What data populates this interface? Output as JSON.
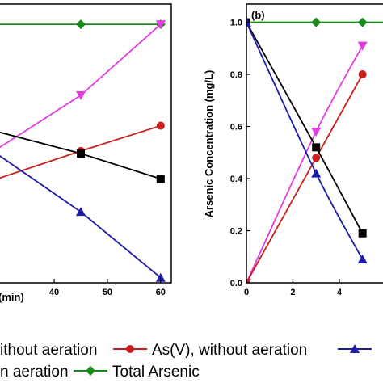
{
  "chart_data": [
    {
      "type": "line",
      "panel": "(a)",
      "title": "",
      "xlabel": "(min)",
      "ylabel": "",
      "xlim": [
        28,
        62
      ],
      "ylim": [
        -0.02,
        1.08
      ],
      "x_ticks": [
        40,
        50,
        60
      ],
      "y_ticks": [],
      "series": [
        {
          "key": "total",
          "color": "#1a8a1a",
          "marker": "diamond",
          "x": [
            25,
            45,
            60
          ],
          "y": [
            1.0,
            1.0,
            1.0
          ]
        },
        {
          "key": "pink",
          "color": "#e23be2",
          "marker": "triangle-down",
          "x": [
            25,
            45,
            60
          ],
          "y": [
            0.45,
            0.72,
            1.0
          ]
        },
        {
          "key": "red",
          "color": "#c81e1e",
          "marker": "circle",
          "x": [
            25,
            45,
            60
          ],
          "y": [
            0.36,
            0.5,
            0.6
          ]
        },
        {
          "key": "black",
          "color": "#000000",
          "marker": "square",
          "x": [
            25,
            45,
            60
          ],
          "y": [
            0.6,
            0.49,
            0.39
          ]
        },
        {
          "key": "blue",
          "color": "#1c1ca8",
          "marker": "triangle-up",
          "x": [
            25,
            45,
            60
          ],
          "y": [
            0.55,
            0.26,
            0.0
          ]
        }
      ]
    },
    {
      "type": "line",
      "panel": "(b)",
      "title": "",
      "xlabel": "",
      "ylabel": "Arsenic Concentration (mg/L)",
      "xlim": [
        0,
        6.3
      ],
      "ylim": [
        0,
        1.07
      ],
      "x_ticks": [
        0,
        2,
        4
      ],
      "y_ticks": [
        0.0,
        0.2,
        0.4,
        0.6,
        0.8,
        1.0
      ],
      "series": [
        {
          "key": "total",
          "color": "#1a8a1a",
          "marker": "diamond",
          "x": [
            0,
            3,
            5,
            7
          ],
          "y": [
            1.0,
            1.0,
            1.0,
            1.0
          ]
        },
        {
          "key": "pink",
          "color": "#e23be2",
          "marker": "triangle-down",
          "x": [
            0,
            3,
            5
          ],
          "y": [
            0.0,
            0.58,
            0.91
          ]
        },
        {
          "key": "red",
          "color": "#c81e1e",
          "marker": "circle",
          "x": [
            0,
            3,
            5
          ],
          "y": [
            0.0,
            0.48,
            0.8
          ]
        },
        {
          "key": "black",
          "color": "#000000",
          "marker": "square",
          "x": [
            0,
            3,
            5
          ],
          "y": [
            1.0,
            0.52,
            0.19
          ]
        },
        {
          "key": "blue",
          "color": "#1c1ca8",
          "marker": "triangle-up",
          "x": [
            0,
            3,
            5
          ],
          "y": [
            1.0,
            0.42,
            0.09
          ]
        }
      ]
    }
  ],
  "legend": {
    "row1": [
      {
        "key": "black",
        "label": "ithout aeration"
      },
      {
        "key": "red",
        "label": "As(V), without aeration"
      },
      {
        "key": "blue",
        "label": ""
      }
    ],
    "row2": [
      {
        "key": "pink",
        "label": "n aeration"
      },
      {
        "key": "total",
        "label": "Total Arsenic"
      }
    ]
  }
}
